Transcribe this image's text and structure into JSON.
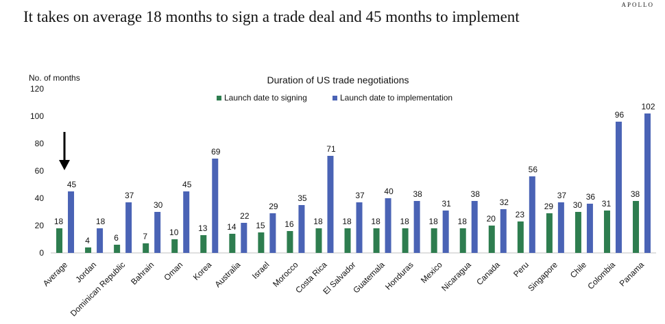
{
  "brand": "APOLLO",
  "headline": "It takes on average 18 months to sign a trade deal and 45 months to implement",
  "chart_data": {
    "type": "bar",
    "title": "Duration of US trade negotiations",
    "ylabel": "No. of months",
    "xlabel": "",
    "ylim": [
      0,
      120
    ],
    "yticks": [
      0,
      20,
      40,
      60,
      80,
      100,
      120
    ],
    "legend_position": "top-center",
    "grid": false,
    "categories": [
      "Average",
      "Jordan",
      "Dominican Republic",
      "Bahrain",
      "Oman",
      "Korea",
      "Australia",
      "Israel",
      "Morocco",
      "Costa Rica",
      "El Salvador",
      "Guatemala",
      "Honduras",
      "Mexico",
      "Nicaragua",
      "Canada",
      "Peru",
      "Singapore",
      "Chile",
      "Colombia",
      "Panama"
    ],
    "series": [
      {
        "name": "Launch date to signing",
        "color": "#2e7d4f",
        "values": [
          18,
          4,
          6,
          7,
          10,
          13,
          14,
          15,
          16,
          18,
          18,
          18,
          18,
          18,
          18,
          20,
          23,
          29,
          30,
          31,
          38
        ]
      },
      {
        "name": "Launch date to implementation",
        "color": "#4a63b5",
        "values": [
          45,
          18,
          37,
          30,
          45,
          69,
          22,
          29,
          35,
          71,
          37,
          40,
          38,
          31,
          38,
          32,
          56,
          37,
          36,
          96,
          102
        ]
      }
    ],
    "annotation": {
      "type": "down-arrow",
      "target_category": "Average"
    }
  }
}
